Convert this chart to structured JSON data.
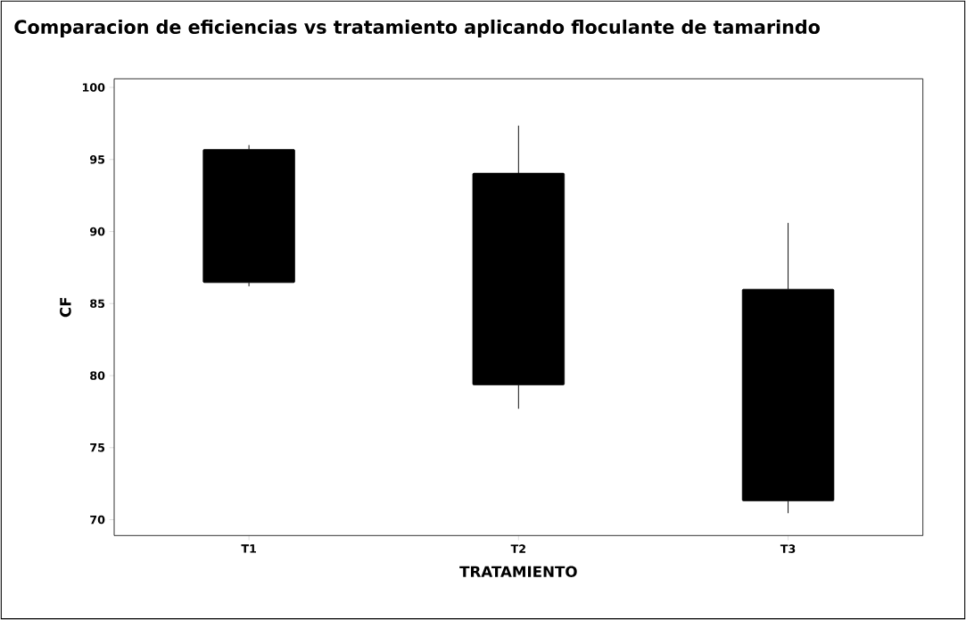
{
  "chart_data": {
    "type": "box",
    "title": "Comparacion de eficiencias vs tratamiento  aplicando floculante de tamarindo",
    "xlabel": "TRATAMIENTO",
    "ylabel": "CF",
    "categories": [
      "T1",
      "T2",
      "T3"
    ],
    "series": [
      {
        "color": "#000000",
        "boxes": [
          {
            "low": 86.2,
            "q1": 86.45,
            "median": null,
            "q3": 95.7,
            "high": 96.0
          },
          {
            "low": 77.7,
            "q1": 79.35,
            "median": null,
            "q3": 94.05,
            "high": 97.35
          },
          {
            "low": 70.45,
            "q1": 71.3,
            "median": null,
            "q3": 86.0,
            "high": 90.6
          }
        ]
      }
    ],
    "ylim": [
      68.9,
      100.6
    ],
    "yticks": [
      70,
      75,
      80,
      85,
      90,
      95,
      100
    ],
    "grid": false
  }
}
